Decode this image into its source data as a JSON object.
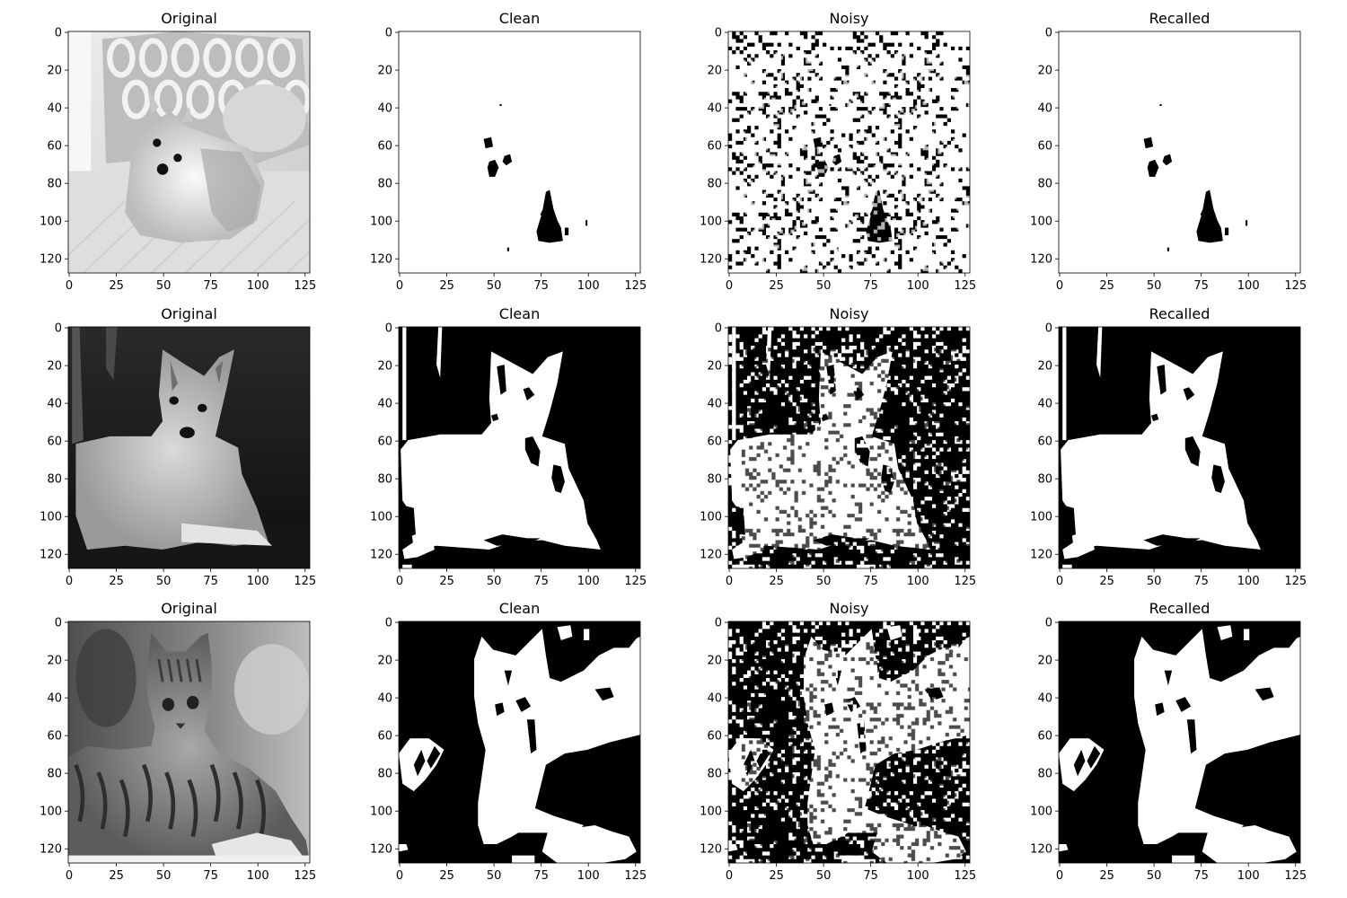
{
  "colors": {
    "ink": "#000000",
    "paper": "#ffffff"
  },
  "chart_data": {
    "type": "heatmap",
    "image_size": [
      128,
      128
    ],
    "x_ticks": [
      0,
      25,
      50,
      75,
      100,
      125
    ],
    "y_ticks": [
      0,
      20,
      40,
      60,
      80,
      100,
      120
    ],
    "xlim": [
      -0.5,
      127.5
    ],
    "ylim": [
      127.5,
      -0.5
    ],
    "grid": false,
    "rows": [
      {
        "subject": "pomeranian-on-sofa",
        "panels": [
          {
            "title": "Original",
            "colormap": "gray",
            "content": "grayscale-photo"
          },
          {
            "title": "Clean",
            "colormap": "binary",
            "content": "thresholded"
          },
          {
            "title": "Noisy",
            "colormap": "binary",
            "content": "noisy-thresholded"
          },
          {
            "title": "Recalled",
            "colormap": "binary",
            "content": "recalled"
          }
        ]
      },
      {
        "subject": "chihuahua-on-dark-background",
        "panels": [
          {
            "title": "Original",
            "colormap": "gray",
            "content": "grayscale-photo"
          },
          {
            "title": "Clean",
            "colormap": "binary",
            "content": "thresholded"
          },
          {
            "title": "Noisy",
            "colormap": "binary",
            "content": "noisy-thresholded"
          },
          {
            "title": "Recalled",
            "colormap": "binary",
            "content": "recalled"
          }
        ]
      },
      {
        "subject": "tabby-cat-lying",
        "panels": [
          {
            "title": "Original",
            "colormap": "gray",
            "content": "grayscale-photo"
          },
          {
            "title": "Clean",
            "colormap": "binary",
            "content": "thresholded"
          },
          {
            "title": "Noisy",
            "colormap": "binary",
            "content": "noisy-thresholded"
          },
          {
            "title": "Recalled",
            "colormap": "binary",
            "content": "recalled"
          }
        ]
      }
    ]
  }
}
